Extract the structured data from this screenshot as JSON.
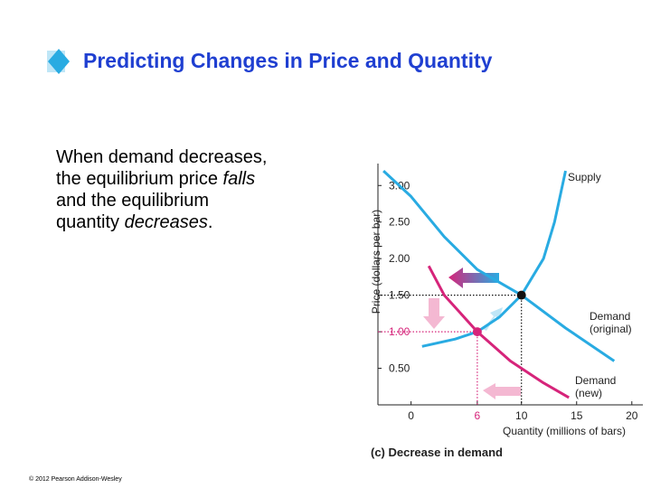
{
  "title": "Predicting Changes in Price and Quantity",
  "body": [
    [
      {
        "text": "When demand decreases,"
      }
    ],
    [
      {
        "text": "the equilibrium price "
      },
      {
        "text": "falls",
        "italic": true
      }
    ],
    [
      {
        "text": "and the equilibrium"
      }
    ],
    [
      {
        "text": "quantity "
      },
      {
        "text": "decreases",
        "italic": true
      },
      {
        "text": "."
      }
    ]
  ],
  "footer": "© 2012 Pearson Addison-Wesley",
  "chart_data": {
    "type": "line",
    "caption": "(c) Decrease in demand",
    "xlabel": "Quantity (millions of bars)",
    "ylabel": "Price (dollars per bar)",
    "xlim": [
      -3,
      21
    ],
    "ylim": [
      0,
      3.3
    ],
    "xticks": [
      0,
      6,
      10,
      15,
      20
    ],
    "yticks": [
      {
        "value": 0.5,
        "label": "0.50"
      },
      {
        "value": 1,
        "label": "1.00"
      },
      {
        "value": 1.5,
        "label": "1.50"
      },
      {
        "value": 2,
        "label": "2.00"
      },
      {
        "value": 2.5,
        "label": "2.50"
      },
      {
        "value": 3,
        "label": "3.00"
      }
    ],
    "highlight_color": "#d6247a",
    "highlight_xtick": 6,
    "highlight_ytick": 1,
    "series": [
      {
        "name": "Supply",
        "color": "#29abe2",
        "x": [
          1,
          4,
          6,
          8,
          10,
          12,
          13,
          14
        ],
        "values": [
          0.8,
          0.9,
          1.0,
          1.2,
          1.5,
          2.0,
          2.5,
          3.2
        ]
      },
      {
        "name": [
          "Demand",
          "(original)"
        ],
        "color": "#29abe2",
        "x": [
          -2.5,
          0,
          3,
          6,
          10,
          14,
          18.4
        ],
        "values": [
          3.2,
          2.85,
          2.3,
          1.85,
          1.5,
          1.05,
          0.6
        ]
      },
      {
        "name": [
          "Demand",
          "(new)"
        ],
        "color": "#d6247a",
        "x": [
          1.6,
          3,
          6,
          9,
          12,
          14.3
        ],
        "values": [
          1.9,
          1.5,
          1.0,
          0.6,
          0.3,
          0.1
        ]
      }
    ],
    "points": [
      {
        "x": 10,
        "y": 1.5,
        "color": "#111111"
      },
      {
        "x": 6,
        "y": 1.0,
        "color": "#d6247a"
      }
    ]
  }
}
